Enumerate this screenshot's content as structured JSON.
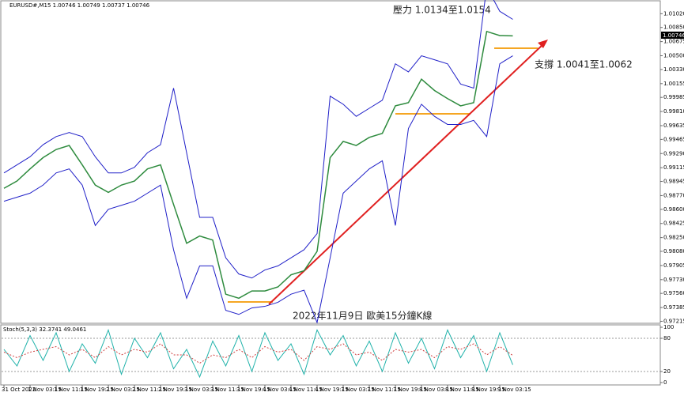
{
  "chart_data": [
    {
      "type": "line",
      "header": "EURUSD#,M15  1.00746 1.00749 1.00737 1.00746",
      "last_price_label": "1.00746",
      "annotations": [
        "壓力 1.0134至1.0154",
        "支撐 1.0041至1.0062",
        "2022年11月9日 歐美15分鐘K線"
      ],
      "categories": [
        "31 Oct 2022",
        null,
        "1 Nov 03:15",
        null,
        "1 Nov 11:15",
        null,
        "1 Nov 19:15",
        null,
        "2 Nov 03:15",
        null,
        "2 Nov 11:15",
        null,
        "2 Nov 19:15",
        null,
        "3 Nov 03:15",
        null,
        "3 Nov 11:15",
        null,
        "3 Nov 19:15",
        null,
        "4 Nov 03:15",
        null,
        "4 Nov 11:15",
        null,
        "4 Nov 19:15",
        null,
        "7 Nov 03:15",
        null,
        "7 Nov 11:15",
        null,
        "7 Nov 19:15",
        null,
        "8 Nov 03:15",
        null,
        "8 Nov 11:15",
        null,
        "8 Nov 19:15",
        null,
        "9 Nov 03:15",
        null
      ],
      "series": [
        {
          "color": "#2e8b3e",
          "values": [
            0.9886,
            0.9895,
            0.991,
            0.9924,
            0.9934,
            0.9939,
            0.9915,
            0.989,
            0.9881,
            0.989,
            0.9895,
            0.991,
            0.9915,
            0.9866,
            0.9818,
            0.9827,
            0.9822,
            0.9755,
            0.975,
            0.9759,
            0.9759,
            0.9764,
            0.9779,
            0.9784,
            0.9808,
            0.9924,
            0.9944,
            0.9939,
            0.9949,
            0.9954,
            0.9988,
            0.9992,
            1.0021,
            1.0007,
            0.9997,
            0.9988,
            0.9992,
            1.008,
            1.0075,
            1.00746
          ]
        },
        {
          "color": "#2020c8",
          "values": [
            0.9905,
            0.9915,
            0.9925,
            0.994,
            0.995,
            0.9955,
            0.995,
            0.9925,
            0.9905,
            0.9905,
            0.9912,
            0.993,
            0.994,
            1.001,
            0.993,
            0.985,
            0.985,
            0.98,
            0.978,
            0.9775,
            0.9785,
            0.979,
            0.98,
            0.981,
            0.983,
            1.0,
            0.999,
            0.9975,
            0.9985,
            0.9995,
            1.004,
            1.003,
            1.005,
            1.0045,
            1.004,
            1.0015,
            1.001,
            1.0135,
            1.0105,
            1.0095
          ]
        },
        {
          "color": "#2020c8",
          "values": [
            0.987,
            0.9875,
            0.988,
            0.989,
            0.9905,
            0.991,
            0.989,
            0.984,
            0.986,
            0.9865,
            0.987,
            0.988,
            0.989,
            0.981,
            0.975,
            0.979,
            0.979,
            0.9735,
            0.973,
            0.9738,
            0.974,
            0.9745,
            0.9755,
            0.976,
            0.972,
            0.98,
            0.988,
            0.9895,
            0.991,
            0.992,
            0.984,
            0.996,
            0.999,
            0.9975,
            0.9965,
            0.9965,
            0.997,
            0.995,
            1.004,
            1.005
          ]
        }
      ],
      "ylim": [
        0.972,
        1.0117
      ],
      "yticks": [
        {
          "value": 1.0102,
          "label": "1.01020"
        },
        {
          "value": 1.0085,
          "label": "1.00850"
        },
        {
          "value": 1.00675,
          "label": "1.00675"
        },
        {
          "value": 1.005,
          "label": "1.00500"
        },
        {
          "value": 1.0033,
          "label": "1.00330"
        },
        {
          "value": 1.00155,
          "label": "1.00155"
        },
        {
          "value": 0.99985,
          "label": "0.99985"
        },
        {
          "value": 0.9981,
          "label": "0.99810"
        },
        {
          "value": 0.99635,
          "label": "0.99635"
        },
        {
          "value": 0.99465,
          "label": "0.99465"
        },
        {
          "value": 0.9929,
          "label": "0.99290"
        },
        {
          "value": 0.99115,
          "label": "0.99115"
        },
        {
          "value": 0.98945,
          "label": "0.98945"
        },
        {
          "value": 0.9877,
          "label": "0.98770"
        },
        {
          "value": 0.986,
          "label": "0.98600"
        },
        {
          "value": 0.98425,
          "label": "0.98425"
        },
        {
          "value": 0.9825,
          "label": "0.98250"
        },
        {
          "value": 0.9808,
          "label": "0.98080"
        },
        {
          "value": 0.97905,
          "label": "0.97905"
        },
        {
          "value": 0.9773,
          "label": "0.97730"
        },
        {
          "value": 0.9756,
          "label": "0.97560"
        },
        {
          "value": 0.97385,
          "label": "0.97385"
        },
        {
          "value": 0.97215,
          "label": "0.97215"
        }
      ]
    },
    {
      "type": "line",
      "header": "Stoch(5,3,3) 32.3741 49.0461",
      "series": [
        {
          "color": "#20b2aa",
          "values": [
            60,
            30,
            85,
            40,
            90,
            20,
            70,
            35,
            95,
            15,
            80,
            45,
            90,
            25,
            60,
            10,
            75,
            30,
            85,
            20,
            90,
            40,
            70,
            15,
            95,
            50,
            85,
            30,
            75,
            20,
            90,
            35,
            80,
            25,
            95,
            45,
            85,
            20,
            90,
            32
          ]
        },
        {
          "color": "#d04040",
          "values": [
            55,
            45,
            55,
            60,
            65,
            50,
            60,
            45,
            65,
            50,
            60,
            55,
            70,
            50,
            50,
            35,
            50,
            45,
            60,
            45,
            65,
            55,
            60,
            40,
            65,
            60,
            70,
            50,
            55,
            40,
            60,
            55,
            60,
            45,
            65,
            60,
            70,
            50,
            65,
            49
          ]
        }
      ],
      "ylim": [
        0,
        100
      ],
      "yticks": [
        100,
        80,
        20,
        0
      ]
    }
  ]
}
